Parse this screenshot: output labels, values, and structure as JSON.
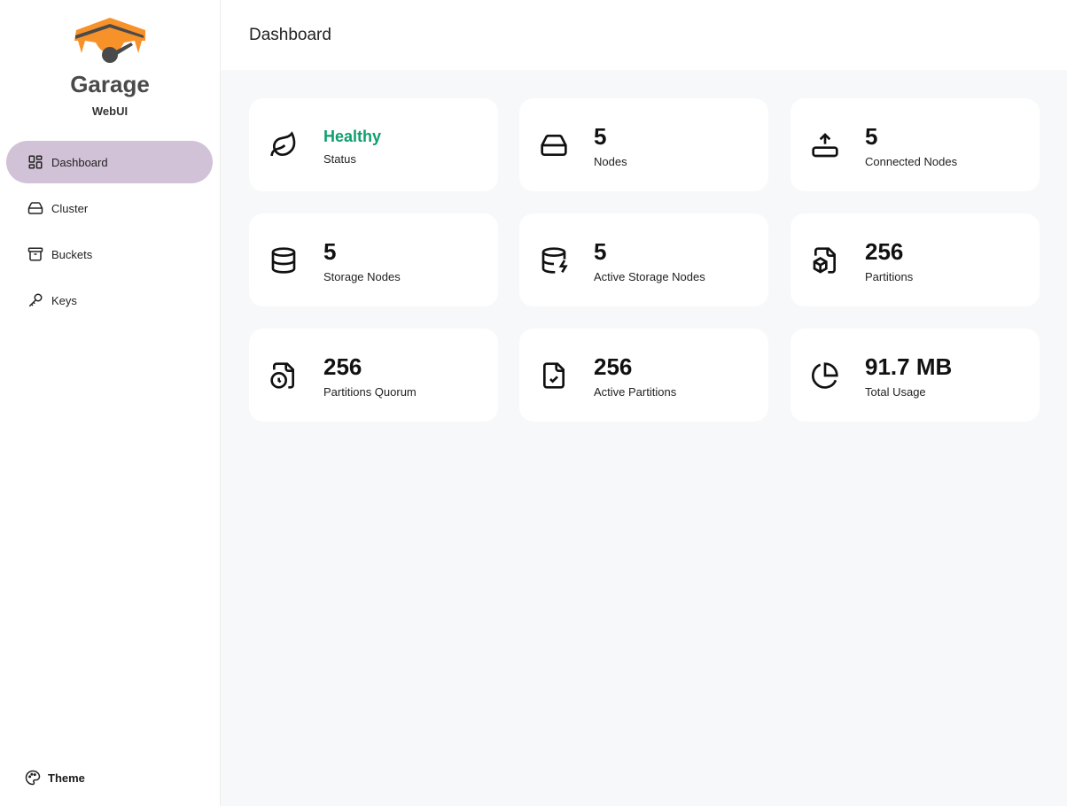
{
  "brand": {
    "title": "Garage",
    "subtitle": "WebUI"
  },
  "nav": [
    {
      "label": "Dashboard",
      "icon": "dashboard-icon",
      "active": true
    },
    {
      "label": "Cluster",
      "icon": "server-icon"
    },
    {
      "label": "Buckets",
      "icon": "archive-icon"
    },
    {
      "label": "Keys",
      "icon": "key-icon"
    }
  ],
  "theme_label": "Theme",
  "header": {
    "title": "Dashboard"
  },
  "colors": {
    "accent": "#d1c2d7",
    "healthy": "#0f9f6e",
    "logo_orange": "#f7922a"
  },
  "cards": [
    {
      "value": "Healthy",
      "label": "Status",
      "icon": "leaf-icon"
    },
    {
      "value": "5",
      "label": "Nodes",
      "icon": "server-icon"
    },
    {
      "value": "5",
      "label": "Connected Nodes",
      "icon": "router-upload-icon"
    },
    {
      "value": "5",
      "label": "Storage Nodes",
      "icon": "database-icon"
    },
    {
      "value": "5",
      "label": "Active Storage Nodes",
      "icon": "database-zap-icon"
    },
    {
      "value": "256",
      "label": "Partitions",
      "icon": "file-box-icon"
    },
    {
      "value": "256",
      "label": "Partitions Quorum",
      "icon": "file-clock-icon"
    },
    {
      "value": "256",
      "label": "Active Partitions",
      "icon": "file-check-icon"
    },
    {
      "value": "91.7 MB",
      "label": "Total Usage",
      "icon": "pie-chart-icon"
    }
  ]
}
